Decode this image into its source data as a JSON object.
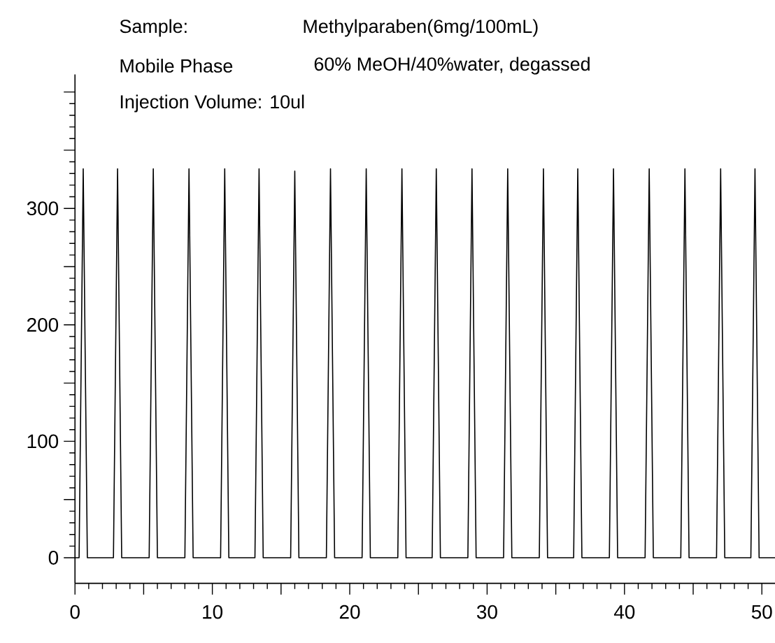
{
  "chart_data": {
    "type": "line",
    "annotations": [
      "Sample:",
      "Methylparaben(6mg/100mL)",
      "Mobile Phase",
      "60% MeOH/40%water, degassed",
      "Injection Volume: 10ul"
    ],
    "series": [
      {
        "color": "#000000",
        "x": [
          0,
          0.3,
          0.6,
          0.9,
          2.8,
          3.1,
          3.4,
          5.4,
          5.7,
          6.0,
          8.0,
          8.3,
          8.6,
          10.6,
          10.9,
          11.2,
          13.1,
          13.4,
          13.7,
          15.7,
          16.0,
          16.3,
          18.3,
          18.6,
          18.9,
          20.9,
          21.2,
          21.5,
          23.5,
          23.8,
          24.1,
          26.0,
          26.3,
          26.6,
          28.6,
          28.9,
          29.2,
          31.2,
          31.5,
          31.8,
          33.8,
          34.1,
          34.4,
          36.3,
          36.6,
          36.9,
          38.9,
          39.2,
          39.5,
          41.5,
          41.8,
          42.1,
          44.1,
          44.4,
          44.7,
          46.7,
          47.0,
          47.3,
          49.2,
          49.5,
          49.8,
          51.3
        ],
        "values": [
          0,
          0,
          334,
          0,
          0,
          334,
          0,
          0,
          334,
          0,
          0,
          334,
          0,
          0,
          334,
          0,
          0,
          334,
          0,
          0,
          332,
          0,
          0,
          334,
          0,
          0,
          334,
          0,
          0,
          334,
          0,
          0,
          334,
          0,
          0,
          334,
          0,
          0,
          334,
          0,
          0,
          334,
          0,
          0,
          334,
          0,
          0,
          334,
          0,
          0,
          334,
          0,
          0,
          334,
          0,
          0,
          334,
          0,
          0,
          334,
          0,
          0
        ]
      }
    ],
    "xlim": [
      0,
      51.8
    ],
    "ylim": [
      -22,
      415
    ],
    "xticks": [
      0,
      {
        "value": 5,
        "label": null
      },
      10,
      {
        "value": 15,
        "label": null
      },
      20,
      {
        "value": 25,
        "label": null
      },
      30,
      {
        "value": 35,
        "label": null
      },
      40,
      {
        "value": 45,
        "label": null
      },
      50
    ],
    "yticks": [
      0,
      {
        "value": 50,
        "label": null
      },
      100,
      {
        "value": 150,
        "label": null
      },
      200,
      {
        "value": 250,
        "label": null
      },
      300,
      {
        "value": 350,
        "label": null
      },
      {
        "value": 400,
        "label": null
      }
    ],
    "line_style": "solid",
    "marker": "none",
    "grid": false
  }
}
